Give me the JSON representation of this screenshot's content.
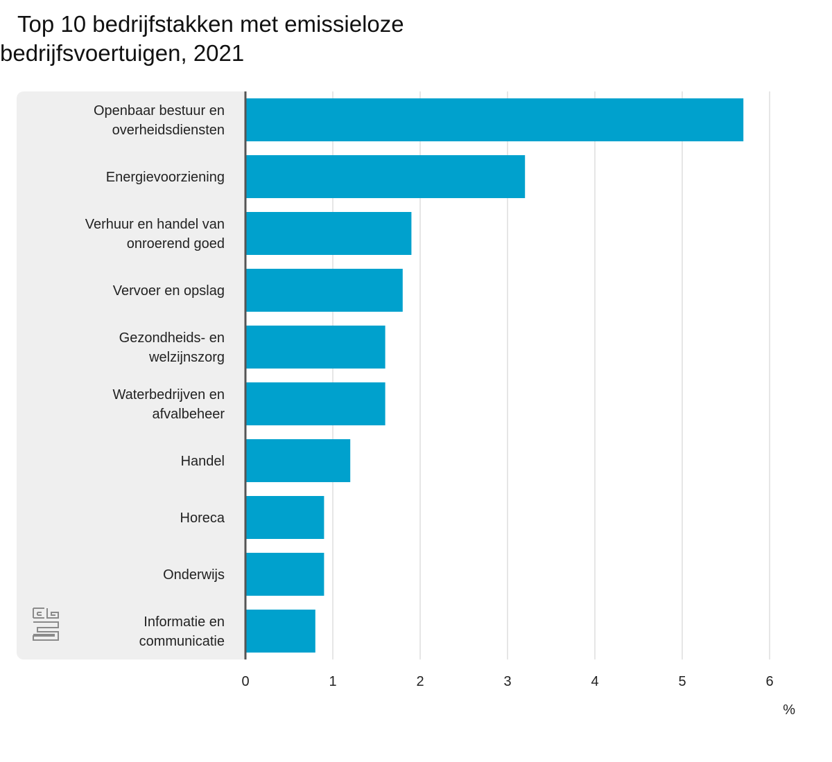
{
  "title_line1": "Top 10 bedrijfstakken met emissieloze",
  "title_line2": "bedrijfsvoertuigen, 2021",
  "logo_text": "cbs",
  "colors": {
    "bar": "#00a1cd",
    "panel": "#efefef",
    "grid": "#cccccc",
    "axis": "#555555"
  },
  "chart_data": {
    "type": "bar",
    "orientation": "horizontal",
    "title": "Top 10 bedrijfstakken met emissieloze bedrijfsvoertuigen, 2021",
    "categories": [
      [
        "Openbaar bestuur en",
        "overheidsdiensten"
      ],
      [
        "Energievoorziening"
      ],
      [
        "Verhuur en handel van",
        "onroerend goed"
      ],
      [
        "Vervoer en opslag"
      ],
      [
        "Gezondheids- en",
        "welzijnszorg"
      ],
      [
        "Waterbedrijven en",
        "afvalbeheer"
      ],
      [
        "Handel"
      ],
      [
        "Horeca"
      ],
      [
        "Onderwijs"
      ],
      [
        "Informatie en",
        "communicatie"
      ]
    ],
    "values": [
      5.7,
      3.2,
      1.9,
      1.8,
      1.6,
      1.6,
      1.2,
      0.9,
      0.9,
      0.8
    ],
    "xlim": [
      0,
      6
    ],
    "xticks": [
      "0",
      "1",
      "2",
      "3",
      "4",
      "5",
      "6"
    ],
    "unit": "%",
    "grid": true
  }
}
